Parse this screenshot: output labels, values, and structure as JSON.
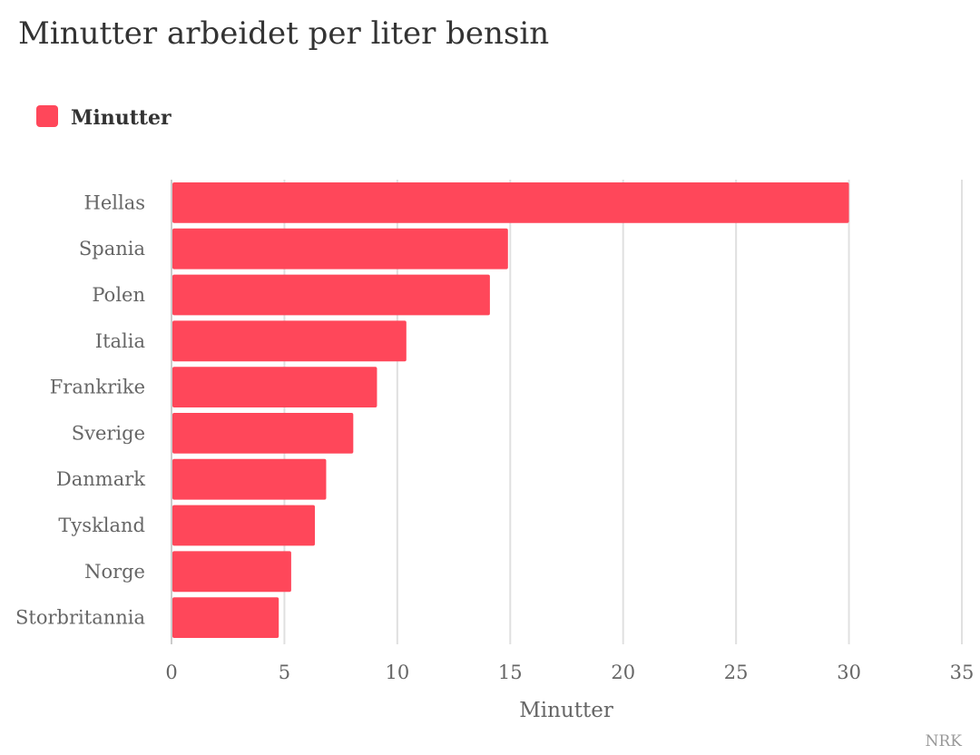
{
  "chart_data": {
    "type": "bar",
    "orientation": "horizontal",
    "title": "Minutter arbeidet per liter bensin",
    "categories": [
      "Hellas",
      "Spania",
      "Polen",
      "Italia",
      "Frankrike",
      "Sverige",
      "Danmark",
      "Tyskland",
      "Norge",
      "Storbritannia"
    ],
    "series": [
      {
        "name": "Minutter",
        "color": "#ff475a",
        "values": [
          30,
          14.9,
          14.1,
          10.4,
          9.1,
          8.05,
          6.85,
          6.35,
          5.3,
          4.75
        ]
      }
    ],
    "xlabel": "Minutter",
    "ylabel": "",
    "xlim": [
      0,
      35
    ],
    "xticks": [
      0,
      5,
      10,
      15,
      20,
      25,
      30,
      35
    ],
    "grid": true,
    "legend": "top-left",
    "credit": "NRK"
  }
}
